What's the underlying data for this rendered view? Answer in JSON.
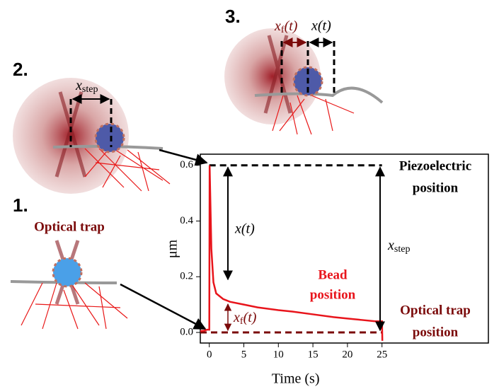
{
  "chart_data": {
    "type": "line",
    "x_label": "Time (s)",
    "y_label": "μm",
    "xlim": [
      -1.3,
      40.4
    ],
    "ylim": [
      -0.038,
      0.64
    ],
    "xticks": [
      0,
      5,
      10,
      15,
      20,
      25
    ],
    "yticks": [
      {
        "value": 0,
        "label": "0.0"
      },
      0.2,
      0.4,
      0.6
    ],
    "series": [
      {
        "color": "#e8141b",
        "x": [
          -1.3,
          -0.8,
          -0.3,
          0,
          0.05,
          0.3,
          0.6,
          1,
          2,
          3,
          5,
          7,
          10,
          12,
          15,
          18,
          20,
          22,
          24,
          25,
          25.05
        ],
        "values": [
          0.005,
          0.006,
          0.01,
          0.01,
          0.6,
          0.3,
          0.18,
          0.14,
          0.12,
          0.11,
          0.1,
          0.09,
          0.08,
          0.075,
          0.065,
          0.055,
          0.05,
          0.045,
          0.04,
          0.04,
          -0.03
        ]
      }
    ],
    "reference_lines": [
      {
        "value": 0.6,
        "color": "#000000",
        "label": [
          "Piezoelectric",
          "position"
        ]
      },
      {
        "value": 0,
        "color": "#7b0a0a",
        "label": [
          "Optical trap",
          "position"
        ]
      }
    ],
    "bead_label": [
      "Bead",
      "position"
    ],
    "x_label_t": "x(t)",
    "xf_label": {
      "symbol": "x",
      "subscript": "f",
      "rest": "(t)"
    },
    "xstep_label": {
      "symbol": "x",
      "subscript": "step"
    }
  },
  "diagram": {
    "steps": [
      "1.",
      "2.",
      "3."
    ],
    "optical_trap": "Optical trap",
    "xstep_label": {
      "symbol": "x",
      "subscript": "step"
    },
    "xf_label": {
      "symbol": "x",
      "subscript": "f",
      "rest": "(t)"
    },
    "x_label_t": "x(t)"
  }
}
